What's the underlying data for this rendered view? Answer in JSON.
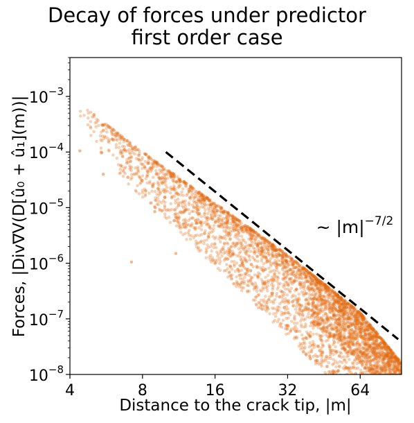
{
  "chart_data": {
    "type": "scatter",
    "title_lines": [
      "Decay of forces under predictor",
      "first order case"
    ],
    "xlabel": "Distance to the crack tip, |m|",
    "ylabel": "Forces, |Div∇V(D[û₀ + û₁](m))|",
    "x_scale": "log",
    "y_scale": "log",
    "xlim": [
      4,
      95
    ],
    "ylim": [
      1e-08,
      0.005
    ],
    "x_ticks": [
      4,
      8,
      16,
      32,
      64
    ],
    "x_tick_labels": [
      "4",
      "8",
      "16",
      "32",
      "64"
    ],
    "y_ticks": [
      1e-08,
      1e-07,
      1e-06,
      1e-05,
      0.0001,
      0.001
    ],
    "y_tick_labels": [
      {
        "base": "10",
        "exp": "−8"
      },
      {
        "base": "10",
        "exp": "−7"
      },
      {
        "base": "10",
        "exp": "−6"
      },
      {
        "base": "10",
        "exp": "−5"
      },
      {
        "base": "10",
        "exp": "−4"
      },
      {
        "base": "10",
        "exp": "−3"
      }
    ],
    "series": [
      {
        "color": "#e06a10",
        "marker": "circle",
        "alpha": 0.3,
        "envelope_points": [
          [
            4.3,
            0.0008
          ],
          [
            8,
            0.0001
          ],
          [
            16,
            1.2e-05
          ],
          [
            32,
            1.4e-06
          ],
          [
            64,
            1.3e-07
          ],
          [
            95,
            1.6e-08
          ]
        ],
        "outlier_points": [
          [
            4.4,
            0.000105
          ],
          [
            5.5,
            4e-05
          ],
          [
            7.2,
            1.05e-06
          ],
          [
            9,
            8.5e-06
          ],
          [
            12,
            4.5e-06
          ],
          [
            15,
            3e-06
          ],
          [
            11,
            1.5e-06
          ]
        ]
      }
    ],
    "reference_line": {
      "style": "dashed",
      "color": "#000000",
      "x": [
        10,
        92
      ],
      "y": [
        0.0001,
        4.3e-08
      ],
      "label": "~ |m|",
      "label_exponent": "−7/2",
      "label_x": 42,
      "label_y": 3.5e-06
    },
    "grid": false
  }
}
